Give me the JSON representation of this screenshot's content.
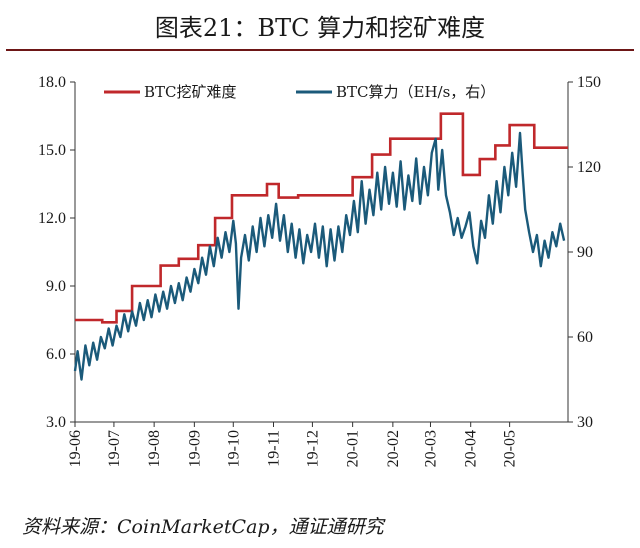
{
  "title": "图表21：BTC 算力和挖矿难度",
  "source": "资料来源：CoinMarketCap，通证通研究",
  "chart_data": {
    "type": "line",
    "x_ticks": [
      "19-06",
      "19-07",
      "19-08",
      "19-09",
      "19-10",
      "19-11",
      "19-12",
      "20-01",
      "20-02",
      "20-03",
      "20-04",
      "20-05"
    ],
    "x_range": [
      "2019-06-01",
      "2020-06-15"
    ],
    "y_left": {
      "ticks": [
        "3.0",
        "6.0",
        "9.0",
        "12.0",
        "15.0",
        "18.0"
      ],
      "range": [
        3,
        18
      ]
    },
    "y_right": {
      "ticks": [
        "30",
        "60",
        "90",
        "120",
        "150"
      ],
      "range": [
        30,
        150
      ]
    },
    "series": [
      {
        "name": "BTC挖矿难度",
        "axis": "left",
        "color": "#c0282b",
        "step_points": [
          [
            "2019-06-01",
            7.5
          ],
          [
            "2019-06-22",
            7.4
          ],
          [
            "2019-07-03",
            7.9
          ],
          [
            "2019-07-15",
            9.0
          ],
          [
            "2019-07-30",
            9.0
          ],
          [
            "2019-08-06",
            9.9
          ],
          [
            "2019-08-20",
            10.2
          ],
          [
            "2019-09-04",
            10.8
          ],
          [
            "2019-09-17",
            12.0
          ],
          [
            "2019-09-30",
            13.0
          ],
          [
            "2019-10-12",
            13.0
          ],
          [
            "2019-10-27",
            13.5
          ],
          [
            "2019-11-05",
            12.9
          ],
          [
            "2019-11-20",
            13.0
          ],
          [
            "2019-12-05",
            13.0
          ],
          [
            "2019-12-19",
            13.0
          ],
          [
            "2020-01-01",
            13.8
          ],
          [
            "2020-01-16",
            14.8
          ],
          [
            "2020-01-30",
            15.5
          ],
          [
            "2020-02-10",
            15.5
          ],
          [
            "2020-02-23",
            15.5
          ],
          [
            "2020-03-03",
            15.5
          ],
          [
            "2020-03-09",
            16.6
          ],
          [
            "2020-03-26",
            13.9
          ],
          [
            "2020-04-08",
            14.6
          ],
          [
            "2020-04-20",
            15.2
          ],
          [
            "2020-05-01",
            16.1
          ],
          [
            "2020-05-20",
            15.1
          ],
          [
            "2020-06-15",
            15.1
          ]
        ]
      },
      {
        "name": "BTC算力（EH/s，右）",
        "axis": "right",
        "color": "#1b5a7a",
        "points": [
          [
            "2019-06-01",
            48
          ],
          [
            "2019-06-03",
            55
          ],
          [
            "2019-06-06",
            45
          ],
          [
            "2019-06-09",
            57
          ],
          [
            "2019-06-12",
            50
          ],
          [
            "2019-06-15",
            58
          ],
          [
            "2019-06-18",
            52
          ],
          [
            "2019-06-21",
            60
          ],
          [
            "2019-06-24",
            56
          ],
          [
            "2019-06-27",
            63
          ],
          [
            "2019-06-30",
            57
          ],
          [
            "2019-07-03",
            64
          ],
          [
            "2019-07-06",
            60
          ],
          [
            "2019-07-09",
            68
          ],
          [
            "2019-07-12",
            62
          ],
          [
            "2019-07-15",
            69
          ],
          [
            "2019-07-18",
            64
          ],
          [
            "2019-07-21",
            72
          ],
          [
            "2019-07-24",
            66
          ],
          [
            "2019-07-27",
            73
          ],
          [
            "2019-07-30",
            67
          ],
          [
            "2019-08-02",
            75
          ],
          [
            "2019-08-05",
            69
          ],
          [
            "2019-08-08",
            76
          ],
          [
            "2019-08-11",
            70
          ],
          [
            "2019-08-14",
            78
          ],
          [
            "2019-08-17",
            72
          ],
          [
            "2019-08-20",
            79
          ],
          [
            "2019-08-23",
            73
          ],
          [
            "2019-08-26",
            81
          ],
          [
            "2019-08-29",
            76
          ],
          [
            "2019-09-01",
            84
          ],
          [
            "2019-09-04",
            79
          ],
          [
            "2019-09-07",
            88
          ],
          [
            "2019-09-10",
            82
          ],
          [
            "2019-09-13",
            92
          ],
          [
            "2019-09-16",
            85
          ],
          [
            "2019-09-19",
            95
          ],
          [
            "2019-09-22",
            88
          ],
          [
            "2019-09-25",
            97
          ],
          [
            "2019-09-28",
            90
          ],
          [
            "2019-10-01",
            101
          ],
          [
            "2019-10-03",
            93
          ],
          [
            "2019-10-05",
            70
          ],
          [
            "2019-10-07",
            88
          ],
          [
            "2019-10-10",
            96
          ],
          [
            "2019-10-13",
            87
          ],
          [
            "2019-10-16",
            99
          ],
          [
            "2019-10-19",
            90
          ],
          [
            "2019-10-22",
            102
          ],
          [
            "2019-10-25",
            92
          ],
          [
            "2019-10-28",
            103
          ],
          [
            "2019-10-31",
            95
          ],
          [
            "2019-11-03",
            107
          ],
          [
            "2019-11-06",
            94
          ],
          [
            "2019-11-09",
            103
          ],
          [
            "2019-11-12",
            90
          ],
          [
            "2019-11-15",
            100
          ],
          [
            "2019-11-18",
            88
          ],
          [
            "2019-11-21",
            98
          ],
          [
            "2019-11-24",
            86
          ],
          [
            "2019-11-27",
            96
          ],
          [
            "2019-11-30",
            90
          ],
          [
            "2019-12-03",
            100
          ],
          [
            "2019-12-06",
            88
          ],
          [
            "2019-12-09",
            99
          ],
          [
            "2019-12-12",
            85
          ],
          [
            "2019-12-15",
            98
          ],
          [
            "2019-12-18",
            87
          ],
          [
            "2019-12-21",
            99
          ],
          [
            "2019-12-24",
            90
          ],
          [
            "2019-12-27",
            103
          ],
          [
            "2019-12-30",
            96
          ],
          [
            "2020-01-02",
            108
          ],
          [
            "2020-01-05",
            97
          ],
          [
            "2020-01-08",
            115
          ],
          [
            "2020-01-11",
            100
          ],
          [
            "2020-01-14",
            112
          ],
          [
            "2020-01-17",
            103
          ],
          [
            "2020-01-20",
            118
          ],
          [
            "2020-01-23",
            105
          ],
          [
            "2020-01-26",
            120
          ],
          [
            "2020-01-29",
            107
          ],
          [
            "2020-02-01",
            118
          ],
          [
            "2020-02-04",
            106
          ],
          [
            "2020-02-07",
            122
          ],
          [
            "2020-02-10",
            105
          ],
          [
            "2020-02-13",
            117
          ],
          [
            "2020-02-16",
            108
          ],
          [
            "2020-02-19",
            123
          ],
          [
            "2020-02-22",
            107
          ],
          [
            "2020-02-25",
            120
          ],
          [
            "2020-02-28",
            110
          ],
          [
            "2020-03-02",
            125
          ],
          [
            "2020-03-05",
            130
          ],
          [
            "2020-03-07",
            112
          ],
          [
            "2020-03-10",
            126
          ],
          [
            "2020-03-13",
            110
          ],
          [
            "2020-03-16",
            104
          ],
          [
            "2020-03-19",
            96
          ],
          [
            "2020-03-22",
            102
          ],
          [
            "2020-03-25",
            95
          ],
          [
            "2020-03-28",
            99
          ],
          [
            "2020-03-31",
            104
          ],
          [
            "2020-04-03",
            92
          ],
          [
            "2020-04-06",
            86
          ],
          [
            "2020-04-09",
            101
          ],
          [
            "2020-04-12",
            95
          ],
          [
            "2020-04-15",
            110
          ],
          [
            "2020-04-18",
            100
          ],
          [
            "2020-04-21",
            115
          ],
          [
            "2020-04-24",
            104
          ],
          [
            "2020-04-27",
            120
          ],
          [
            "2020-04-30",
            110
          ],
          [
            "2020-05-03",
            125
          ],
          [
            "2020-05-06",
            113
          ],
          [
            "2020-05-09",
            132
          ],
          [
            "2020-05-11",
            118
          ],
          [
            "2020-05-13",
            105
          ],
          [
            "2020-05-16",
            97
          ],
          [
            "2020-05-19",
            90
          ],
          [
            "2020-05-22",
            96
          ],
          [
            "2020-05-25",
            85
          ],
          [
            "2020-05-28",
            94
          ],
          [
            "2020-05-31",
            88
          ],
          [
            "2020-06-03",
            97
          ],
          [
            "2020-06-06",
            92
          ],
          [
            "2020-06-09",
            100
          ],
          [
            "2020-06-12",
            94
          ]
        ]
      }
    ],
    "legend_position": "top",
    "grid": false
  }
}
